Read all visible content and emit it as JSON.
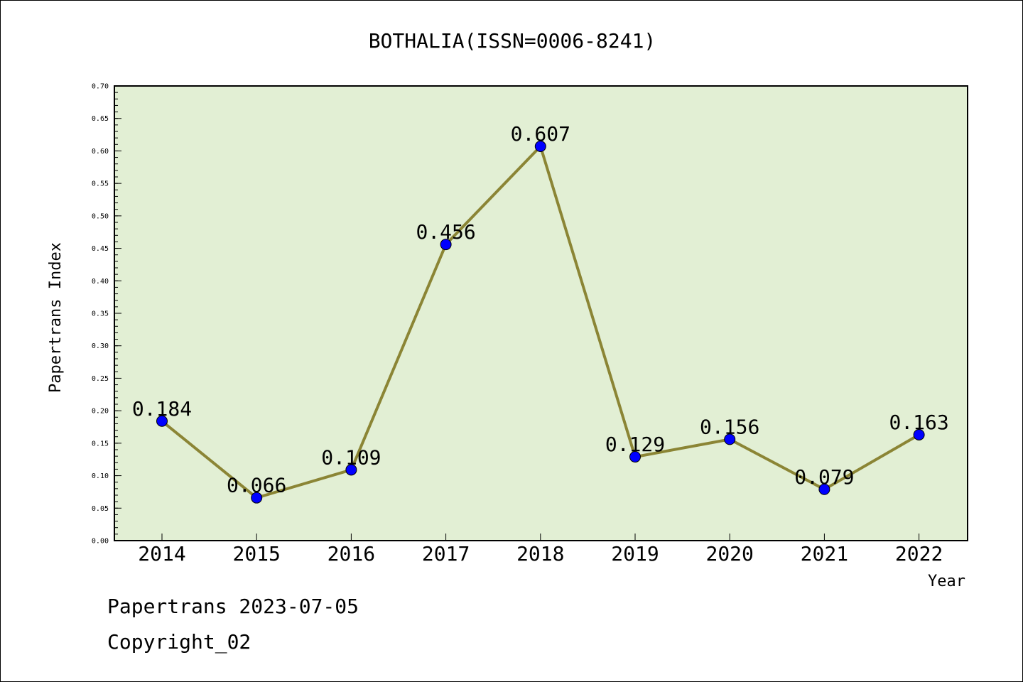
{
  "chart_data": {
    "type": "line",
    "title": "BOTHALIA(ISSN=0006-8241)",
    "xlabel": "Year",
    "ylabel": "Papertrans Index",
    "categories": [
      "2014",
      "2015",
      "2016",
      "2017",
      "2018",
      "2019",
      "2020",
      "2021",
      "2022"
    ],
    "values": [
      0.184,
      0.066,
      0.109,
      0.456,
      0.607,
      0.129,
      0.156,
      0.079,
      0.163
    ],
    "data_labels": [
      "0.184",
      "0.066",
      "0.109",
      "0.456",
      "0.607",
      "0.129",
      "0.156",
      "0.079",
      "0.163"
    ],
    "ylim": [
      0,
      0.7
    ],
    "yticks": [
      "0.00",
      "0.05",
      "0.10",
      "0.15",
      "0.20",
      "0.25",
      "0.30",
      "0.35",
      "0.40",
      "0.45",
      "0.50",
      "0.55",
      "0.60",
      "0.65",
      "0.70"
    ],
    "grid": false,
    "colors": {
      "plot_background": "#e2efd4",
      "line": "#8b8535",
      "marker": "#0000ff"
    }
  },
  "footer": {
    "date_line": "Papertrans 2023-07-05",
    "copyright": "Copyright_02"
  }
}
